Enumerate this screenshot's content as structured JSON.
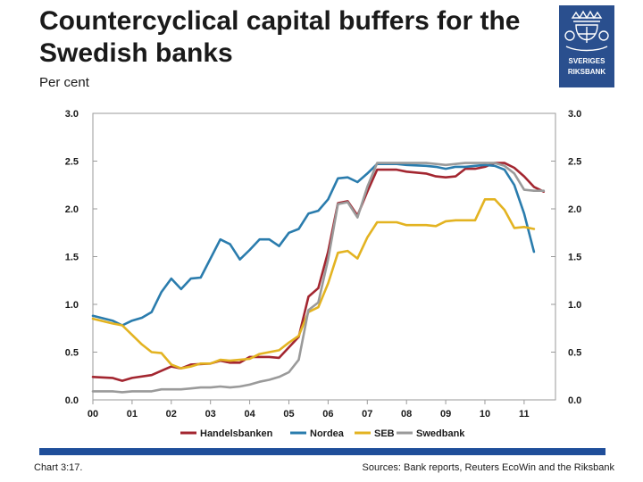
{
  "title": "Countercyclical capital buffers for the Swedish banks",
  "subtitle": "Per cent",
  "logo": {
    "line1": "SVERIGES",
    "line2": "RIKSBANK",
    "icon": "crown-emblem-icon",
    "color": "#2a4f8e"
  },
  "footer": {
    "chart_number": "Chart 3:17.",
    "sources": "Sources: Bank reports, Reuters EcoWin and the Riksbank"
  },
  "chart_data": {
    "type": "line",
    "title": "",
    "xlabel": "",
    "ylabel": "",
    "xlim": [
      2000,
      2011.8
    ],
    "ylim": [
      0,
      3
    ],
    "y_ticks": [
      "3.0",
      "2.5",
      "2.0",
      "1.5",
      "1.0",
      "0.5",
      "0.0"
    ],
    "y_tick_values": [
      3.0,
      2.5,
      2.0,
      1.5,
      1.0,
      0.5,
      0.0
    ],
    "x_ticks": [
      "00",
      "01",
      "02",
      "03",
      "04",
      "05",
      "06",
      "07",
      "08",
      "09",
      "10",
      "11"
    ],
    "x_tick_values": [
      2000,
      2001,
      2002,
      2003,
      2004,
      2005,
      2006,
      2007,
      2008,
      2009,
      2010,
      2011
    ],
    "grid": false,
    "dual_axis_labels": true,
    "legend_position": "bottom",
    "series": [
      {
        "name": "Handelsbanken",
        "color": "#a32630",
        "points": [
          [
            2000.0,
            0.24
          ],
          [
            2000.5,
            0.23
          ],
          [
            2000.75,
            0.2
          ],
          [
            2001.0,
            0.23
          ],
          [
            2001.5,
            0.26
          ],
          [
            2002.0,
            0.35
          ],
          [
            2002.25,
            0.33
          ],
          [
            2002.5,
            0.37
          ],
          [
            2003.0,
            0.38
          ],
          [
            2003.25,
            0.41
          ],
          [
            2003.5,
            0.39
          ],
          [
            2003.75,
            0.39
          ],
          [
            2004.0,
            0.45
          ],
          [
            2004.5,
            0.45
          ],
          [
            2004.75,
            0.44
          ],
          [
            2005.0,
            0.55
          ],
          [
            2005.25,
            0.66
          ],
          [
            2005.5,
            1.08
          ],
          [
            2005.75,
            1.17
          ],
          [
            2006.0,
            1.55
          ],
          [
            2006.25,
            2.06
          ],
          [
            2006.5,
            2.08
          ],
          [
            2006.75,
            1.93
          ],
          [
            2007.0,
            2.18
          ],
          [
            2007.25,
            2.41
          ],
          [
            2007.75,
            2.41
          ],
          [
            2008.0,
            2.39
          ],
          [
            2008.5,
            2.37
          ],
          [
            2008.75,
            2.34
          ],
          [
            2009.0,
            2.33
          ],
          [
            2009.25,
            2.34
          ],
          [
            2009.5,
            2.42
          ],
          [
            2009.75,
            2.42
          ],
          [
            2010.0,
            2.44
          ],
          [
            2010.25,
            2.48
          ],
          [
            2010.5,
            2.48
          ],
          [
            2010.75,
            2.43
          ],
          [
            2011.0,
            2.34
          ],
          [
            2011.25,
            2.23
          ],
          [
            2011.5,
            2.18
          ]
        ]
      },
      {
        "name": "Nordea",
        "color": "#2a7cad",
        "points": [
          [
            2000.0,
            0.88
          ],
          [
            2000.5,
            0.83
          ],
          [
            2000.75,
            0.78
          ],
          [
            2001.0,
            0.83
          ],
          [
            2001.25,
            0.86
          ],
          [
            2001.5,
            0.92
          ],
          [
            2001.75,
            1.13
          ],
          [
            2002.0,
            1.27
          ],
          [
            2002.25,
            1.16
          ],
          [
            2002.5,
            1.27
          ],
          [
            2002.75,
            1.28
          ],
          [
            2003.0,
            1.48
          ],
          [
            2003.25,
            1.68
          ],
          [
            2003.5,
            1.63
          ],
          [
            2003.75,
            1.47
          ],
          [
            2004.0,
            1.57
          ],
          [
            2004.25,
            1.68
          ],
          [
            2004.5,
            1.68
          ],
          [
            2004.75,
            1.61
          ],
          [
            2005.0,
            1.75
          ],
          [
            2005.25,
            1.79
          ],
          [
            2005.5,
            1.95
          ],
          [
            2005.75,
            1.98
          ],
          [
            2006.0,
            2.1
          ],
          [
            2006.25,
            2.32
          ],
          [
            2006.5,
            2.33
          ],
          [
            2006.75,
            2.28
          ],
          [
            2007.0,
            2.37
          ],
          [
            2007.25,
            2.47
          ],
          [
            2007.75,
            2.47
          ],
          [
            2008.0,
            2.46
          ],
          [
            2008.5,
            2.45
          ],
          [
            2008.75,
            2.44
          ],
          [
            2009.0,
            2.42
          ],
          [
            2009.25,
            2.44
          ],
          [
            2009.5,
            2.44
          ],
          [
            2009.75,
            2.45
          ],
          [
            2010.0,
            2.46
          ],
          [
            2010.25,
            2.45
          ],
          [
            2010.5,
            2.41
          ],
          [
            2010.75,
            2.25
          ],
          [
            2011.0,
            1.95
          ],
          [
            2011.25,
            1.55
          ]
        ]
      },
      {
        "name": "SEB",
        "color": "#e3b321",
        "points": [
          [
            2000.0,
            0.85
          ],
          [
            2000.5,
            0.8
          ],
          [
            2000.75,
            0.78
          ],
          [
            2001.0,
            0.68
          ],
          [
            2001.25,
            0.58
          ],
          [
            2001.5,
            0.5
          ],
          [
            2001.75,
            0.49
          ],
          [
            2002.0,
            0.37
          ],
          [
            2002.25,
            0.33
          ],
          [
            2002.5,
            0.35
          ],
          [
            2002.75,
            0.38
          ],
          [
            2003.0,
            0.38
          ],
          [
            2003.25,
            0.42
          ],
          [
            2003.5,
            0.41
          ],
          [
            2003.75,
            0.42
          ],
          [
            2004.0,
            0.43
          ],
          [
            2004.25,
            0.48
          ],
          [
            2004.5,
            0.5
          ],
          [
            2004.75,
            0.52
          ],
          [
            2005.0,
            0.6
          ],
          [
            2005.25,
            0.67
          ],
          [
            2005.5,
            0.92
          ],
          [
            2005.75,
            0.97
          ],
          [
            2006.0,
            1.22
          ],
          [
            2006.25,
            1.54
          ],
          [
            2006.5,
            1.56
          ],
          [
            2006.75,
            1.48
          ],
          [
            2007.0,
            1.7
          ],
          [
            2007.25,
            1.86
          ],
          [
            2007.75,
            1.86
          ],
          [
            2008.0,
            1.83
          ],
          [
            2008.5,
            1.83
          ],
          [
            2008.75,
            1.82
          ],
          [
            2009.0,
            1.87
          ],
          [
            2009.25,
            1.88
          ],
          [
            2009.75,
            1.88
          ],
          [
            2010.0,
            2.1
          ],
          [
            2010.25,
            2.1
          ],
          [
            2010.5,
            1.99
          ],
          [
            2010.75,
            1.8
          ],
          [
            2011.0,
            1.81
          ],
          [
            2011.25,
            1.79
          ]
        ]
      },
      {
        "name": "Swedbank",
        "color": "#9a9a9a",
        "points": [
          [
            2000.0,
            0.09
          ],
          [
            2000.5,
            0.09
          ],
          [
            2000.75,
            0.08
          ],
          [
            2001.0,
            0.09
          ],
          [
            2001.5,
            0.09
          ],
          [
            2001.75,
            0.11
          ],
          [
            2002.0,
            0.11
          ],
          [
            2002.25,
            0.11
          ],
          [
            2002.5,
            0.12
          ],
          [
            2002.75,
            0.13
          ],
          [
            2003.0,
            0.13
          ],
          [
            2003.25,
            0.14
          ],
          [
            2003.5,
            0.13
          ],
          [
            2003.75,
            0.14
          ],
          [
            2004.0,
            0.16
          ],
          [
            2004.25,
            0.19
          ],
          [
            2004.5,
            0.21
          ],
          [
            2004.75,
            0.24
          ],
          [
            2005.0,
            0.29
          ],
          [
            2005.25,
            0.42
          ],
          [
            2005.5,
            0.94
          ],
          [
            2005.75,
            1.02
          ],
          [
            2006.0,
            1.47
          ],
          [
            2006.25,
            2.05
          ],
          [
            2006.5,
            2.07
          ],
          [
            2006.75,
            1.91
          ],
          [
            2007.0,
            2.23
          ],
          [
            2007.25,
            2.48
          ],
          [
            2008.0,
            2.48
          ],
          [
            2008.5,
            2.48
          ],
          [
            2008.75,
            2.47
          ],
          [
            2009.0,
            2.46
          ],
          [
            2009.25,
            2.47
          ],
          [
            2009.5,
            2.48
          ],
          [
            2010.0,
            2.48
          ],
          [
            2010.25,
            2.48
          ],
          [
            2010.5,
            2.45
          ],
          [
            2010.75,
            2.37
          ],
          [
            2011.0,
            2.2
          ],
          [
            2011.25,
            2.19
          ],
          [
            2011.5,
            2.19
          ]
        ]
      }
    ]
  }
}
